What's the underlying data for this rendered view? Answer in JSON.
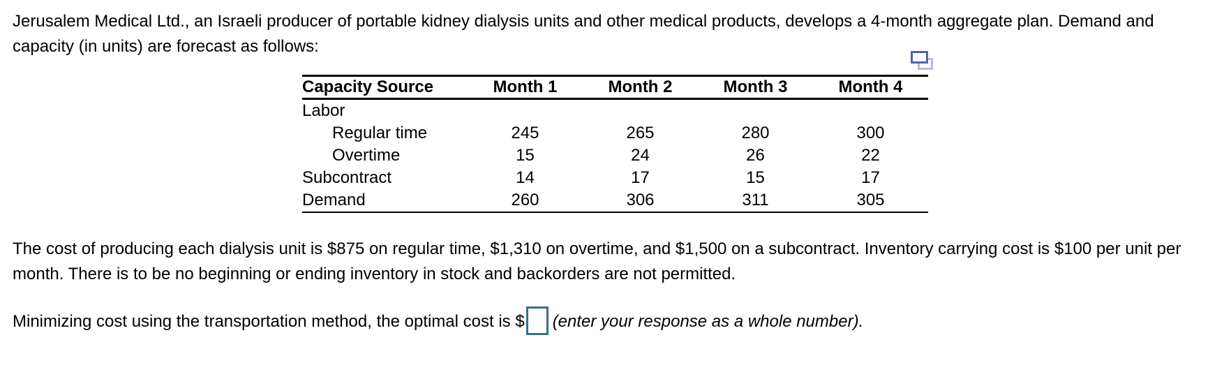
{
  "page": {
    "background": "#ffffff"
  },
  "intro": {
    "text": "Jerusalem Medical Ltd., an Israeli producer of portable kidney dialysis units and other medical products, develops a 4-month aggregate plan. Demand and capacity (in units) are forecast as follows:"
  },
  "table": {
    "columns": [
      "Capacity Source",
      "Month 1",
      "Month 2",
      "Month 3",
      "Month 4"
    ],
    "rows": [
      {
        "label": "Labor",
        "indent": false,
        "values": [
          "",
          "",
          "",
          ""
        ]
      },
      {
        "label": "Regular time",
        "indent": true,
        "values": [
          "245",
          "265",
          "280",
          "300"
        ]
      },
      {
        "label": "Overtime",
        "indent": true,
        "values": [
          "15",
          "24",
          "26",
          "22"
        ]
      },
      {
        "label": "Subcontract",
        "indent": false,
        "values": [
          "14",
          "17",
          "15",
          "17"
        ]
      },
      {
        "label": "Demand",
        "indent": false,
        "values": [
          "260",
          "306",
          "311",
          "305"
        ]
      }
    ]
  },
  "icons": {
    "table_action": "copy-table-icon"
  },
  "cost_text": "The cost of producing each dialysis unit is $875 on regular time, $1,310 on overtime, and $1,500 on a subcontract. Inventory carrying cost is $100 per unit per month. There is to be no beginning or ending inventory in stock and backorders are not permitted.",
  "question": {
    "prefix": "Minimizing cost using the transportation method, the optimal cost is $",
    "answer_value": "",
    "suffix": "(enter your response as a whole number)."
  },
  "colors": {
    "text": "#000000",
    "answer_box_border": "#35718f",
    "copy_icon_front": "#5363a9",
    "copy_icon_back": "#b4bbdf"
  }
}
